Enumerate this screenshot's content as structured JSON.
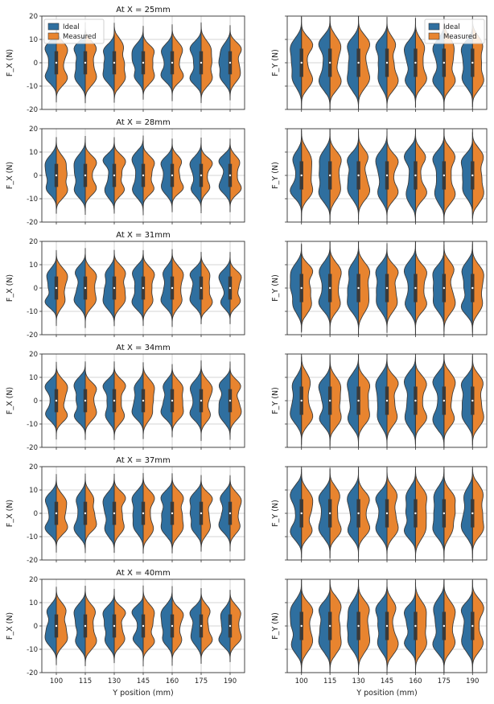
{
  "chart_data": {
    "type": "violin",
    "layout": "6 rows x 2 columns of split violin plots",
    "colors": {
      "Ideal": "#2f6f9f",
      "Measured": "#e8842f"
    },
    "categories": [
      "100",
      "115",
      "130",
      "145",
      "160",
      "175",
      "190"
    ],
    "xlabel": "Y position (mm)",
    "ylim": [
      -20,
      20
    ],
    "yticks": [
      -20,
      -10,
      0,
      10,
      20
    ],
    "grid": true,
    "legend": {
      "entries": [
        "Ideal",
        "Measured"
      ],
      "placement": "top-left (left column, first row) and top-right (right column, first row)"
    },
    "columns": [
      {
        "ylabel": "F_X (N)",
        "spread": 9,
        "center": 0
      },
      {
        "ylabel": "F_Y (N)",
        "spread": 11,
        "center": 0
      }
    ],
    "rows": [
      {
        "title": "At X = 25mm"
      },
      {
        "title": "At X = 28mm"
      },
      {
        "title": "At X = 31mm"
      },
      {
        "title": "At X = 34mm"
      },
      {
        "title": "At X = 37mm"
      },
      {
        "title": "At X = 40mm"
      }
    ]
  }
}
